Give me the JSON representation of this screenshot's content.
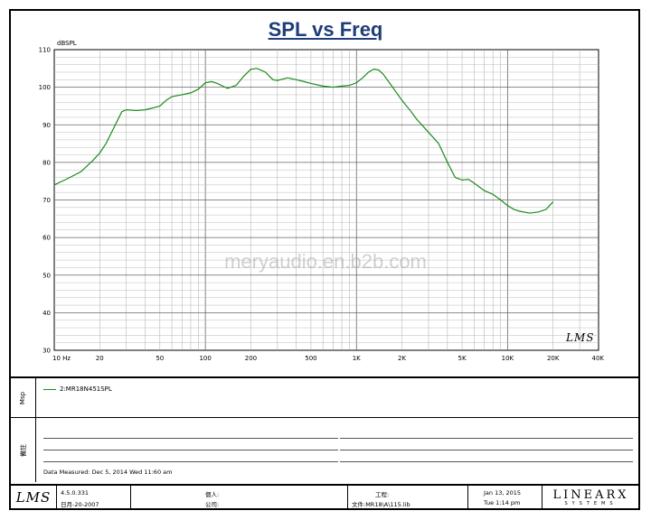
{
  "chart_data": {
    "type": "line",
    "title": "SPL vs Freq",
    "ylabel": "dBSPL",
    "xlabel": "",
    "x_scale": "log",
    "xlim": [
      10,
      40000
    ],
    "ylim": [
      30,
      110
    ],
    "y_ticks": [
      30,
      40,
      50,
      60,
      70,
      80,
      90,
      100,
      110
    ],
    "x_tick_labels": [
      {
        "value": 10,
        "label": "10 Hz"
      },
      {
        "value": 20,
        "label": "20"
      },
      {
        "value": 50,
        "label": "50"
      },
      {
        "value": 100,
        "label": "100"
      },
      {
        "value": 200,
        "label": "200"
      },
      {
        "value": 500,
        "label": "500"
      },
      {
        "value": 1000,
        "label": "1K"
      },
      {
        "value": 2000,
        "label": "2K"
      },
      {
        "value": 5000,
        "label": "5K"
      },
      {
        "value": 10000,
        "label": "10K"
      },
      {
        "value": 20000,
        "label": "20K"
      },
      {
        "value": 40000,
        "label": "40K"
      }
    ],
    "grid": true,
    "legend_position": "bottom-left",
    "series": [
      {
        "name": "2:MR18N451SPL",
        "color": "#1a8a1a",
        "x": [
          10,
          12,
          15,
          18,
          20,
          22,
          25,
          28,
          30,
          35,
          40,
          45,
          50,
          55,
          60,
          70,
          80,
          90,
          100,
          110,
          120,
          140,
          160,
          180,
          200,
          220,
          250,
          280,
          300,
          350,
          400,
          450,
          500,
          600,
          700,
          800,
          900,
          1000,
          1100,
          1200,
          1300,
          1400,
          1500,
          1700,
          2000,
          2300,
          2500,
          3000,
          3500,
          4000,
          4500,
          5000,
          5500,
          6000,
          7000,
          8000,
          9000,
          10000,
          11000,
          12000,
          14000,
          16000,
          18000,
          20000
        ],
        "y": [
          74,
          75.5,
          77.5,
          80.5,
          82.5,
          85,
          89.5,
          93.5,
          94,
          93.8,
          94,
          94.5,
          95,
          96.5,
          97.5,
          98,
          98.5,
          99.5,
          101.2,
          101.5,
          101,
          99.7,
          100.5,
          103,
          104.8,
          105,
          104,
          102,
          101.8,
          102.5,
          102,
          101.5,
          101,
          100.3,
          100,
          100.3,
          100.5,
          101.2,
          102.5,
          104,
          104.8,
          104.6,
          103.5,
          100.5,
          96.5,
          93.5,
          91.5,
          88,
          85,
          80,
          76,
          75.3,
          75.5,
          74.5,
          72.5,
          71.5,
          70,
          68.5,
          67.5,
          67,
          66.5,
          66.8,
          67.5,
          69.5
        ]
      }
    ]
  },
  "legend": {
    "side_label": "Msp",
    "entry": "2:MR18N451SPL"
  },
  "notes": {
    "side_label": "備註",
    "date_measured": "Data Measured:  Dec  5, 2014  Wed 11:60 am"
  },
  "watermark": "meryaudio.en.b2b.com",
  "chart_logo": "LMS",
  "footer": {
    "logo": "LMS",
    "version": "4.5.0.331",
    "release": "日月-20-2007",
    "person_label": "個人:",
    "company_label": "公司:",
    "project_label": "工程:",
    "file_label": "文件:MR18\\A\\115.lib",
    "date": "Jan 13, 2015",
    "time": "Tue  1:14 pm",
    "brand_main": "LINEARX",
    "brand_sub": "SYSTEMS"
  }
}
